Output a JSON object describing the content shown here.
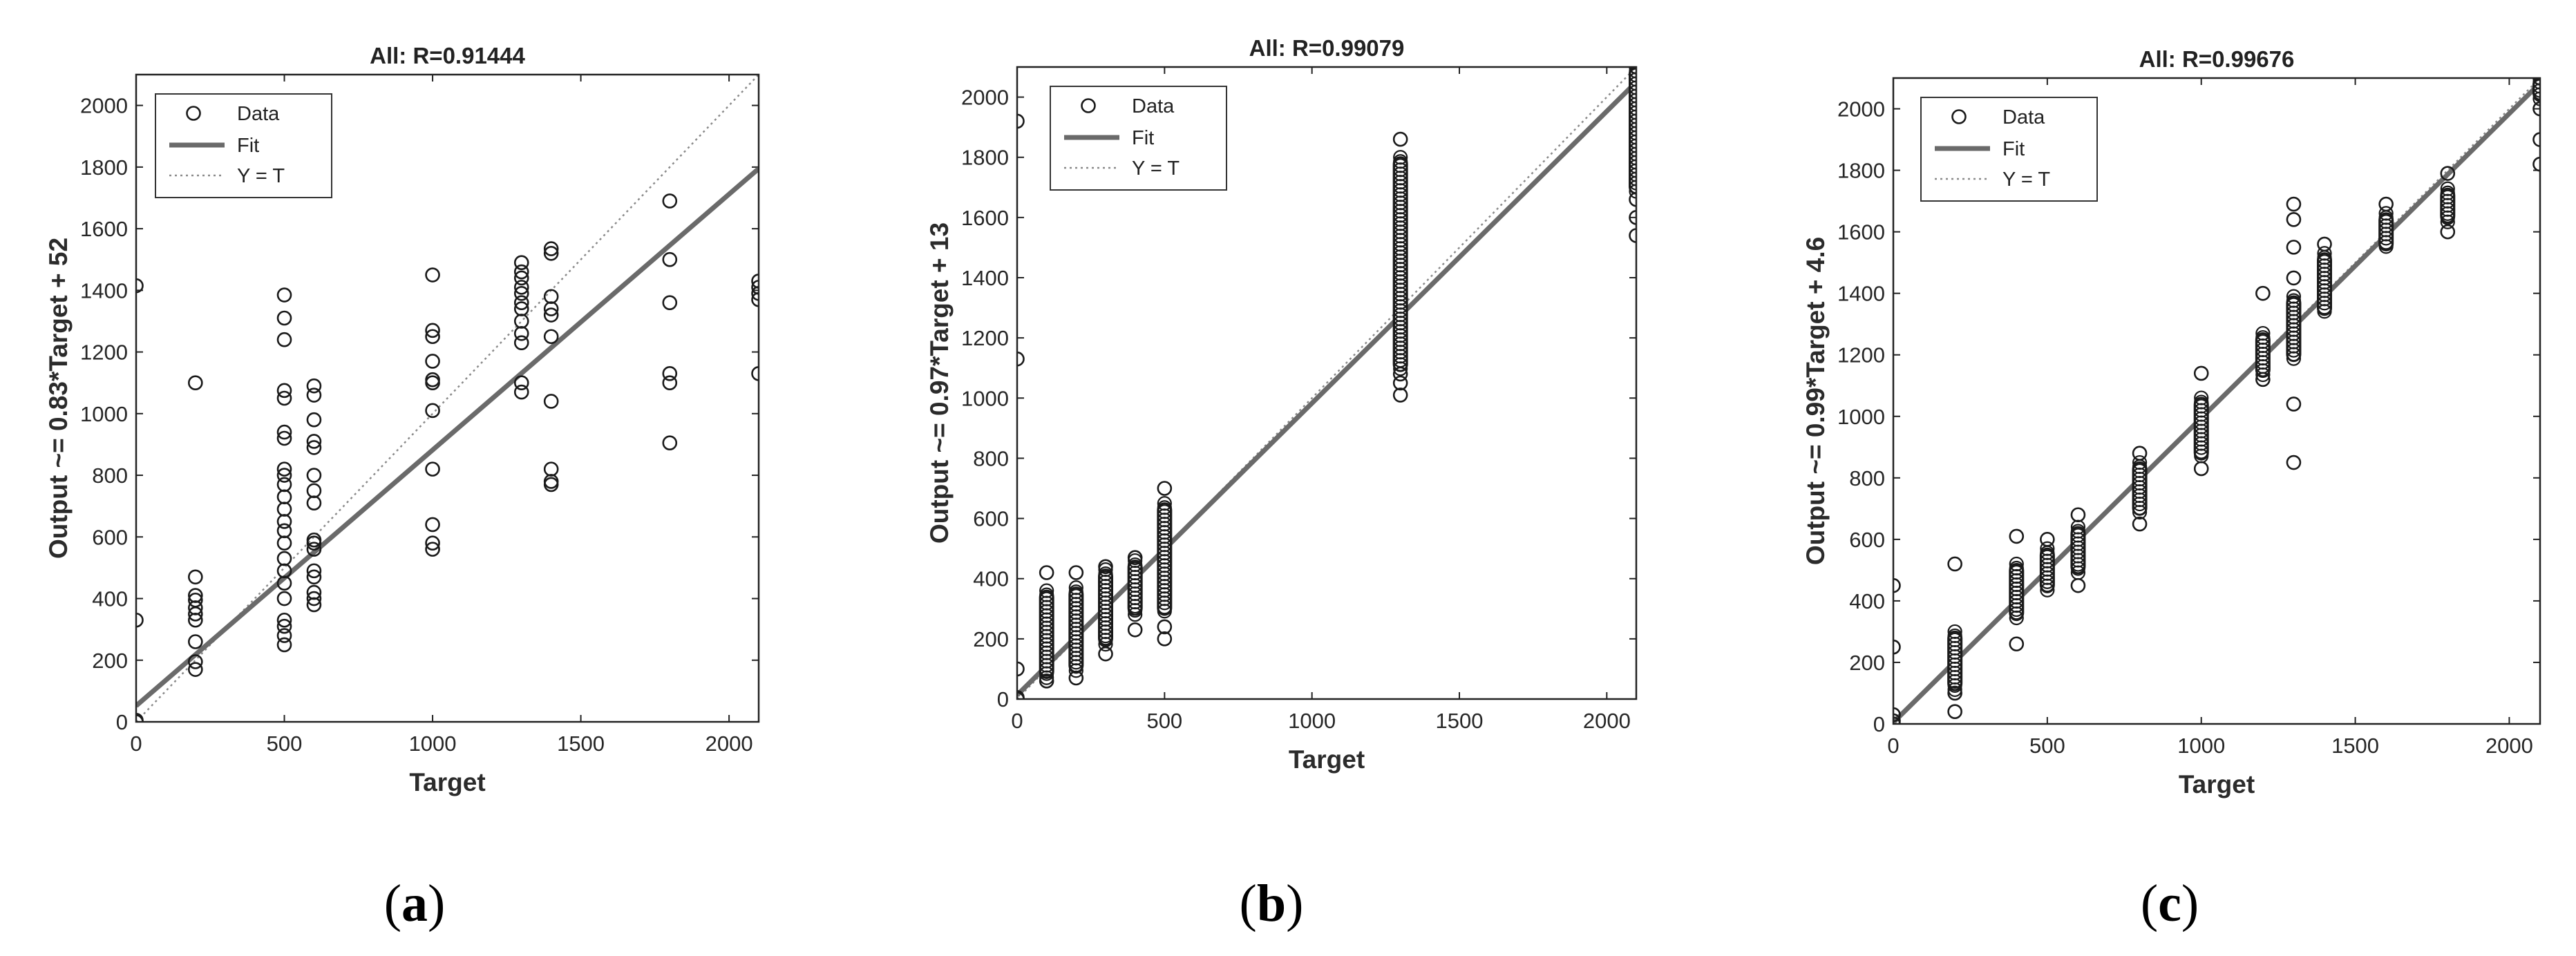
{
  "captions": [
    {
      "open": "(",
      "letter": "a",
      "close": ")"
    },
    {
      "open": "(",
      "letter": "b",
      "close": ")"
    },
    {
      "open": "(",
      "letter": "c",
      "close": ")"
    }
  ],
  "chart_data": [
    {
      "type": "scatter",
      "title": "All: R=0.91444",
      "xlabel": "Target",
      "ylabel": "Output ~= 0.83*Target + 52",
      "xlim": [
        0,
        2100
      ],
      "ylim": [
        0,
        2100
      ],
      "xticks": [
        "0",
        "500",
        "1000",
        "1500",
        "2000"
      ],
      "yticks": [
        "0",
        "200",
        "400",
        "600",
        "800",
        "1000",
        "1200",
        "1400",
        "1600",
        "1800",
        "2000"
      ],
      "legend": {
        "position": "top-left",
        "entries": [
          "Data",
          "Fit",
          "Y = T"
        ]
      },
      "fit": {
        "slope": 0.83,
        "intercept": 52
      },
      "colors": {
        "data": "#1a1a1a",
        "fit": "#6a6a6a",
        "identity": "#8a8a8a"
      },
      "series": [
        {
          "name": "Data",
          "points": [
            [
              0,
              0
            ],
            [
              0,
              5
            ],
            [
              0,
              330
            ],
            [
              0,
              1415
            ],
            [
              200,
              170
            ],
            [
              200,
              195
            ],
            [
              200,
              260
            ],
            [
              200,
              330
            ],
            [
              200,
              350
            ],
            [
              200,
              370
            ],
            [
              200,
              395
            ],
            [
              200,
              410
            ],
            [
              200,
              470
            ],
            [
              200,
              1100
            ],
            [
              500,
              250
            ],
            [
              500,
              280
            ],
            [
              500,
              310
            ],
            [
              500,
              330
            ],
            [
              500,
              400
            ],
            [
              500,
              450
            ],
            [
              500,
              490
            ],
            [
              500,
              530
            ],
            [
              500,
              580
            ],
            [
              500,
              620
            ],
            [
              500,
              650
            ],
            [
              500,
              690
            ],
            [
              500,
              730
            ],
            [
              500,
              770
            ],
            [
              500,
              800
            ],
            [
              500,
              820
            ],
            [
              500,
              920
            ],
            [
              500,
              940
            ],
            [
              500,
              1050
            ],
            [
              500,
              1075
            ],
            [
              500,
              1240
            ],
            [
              500,
              1310
            ],
            [
              500,
              1385
            ],
            [
              600,
              380
            ],
            [
              600,
              400
            ],
            [
              600,
              420
            ],
            [
              600,
              470
            ],
            [
              600,
              490
            ],
            [
              600,
              560
            ],
            [
              600,
              580
            ],
            [
              600,
              590
            ],
            [
              600,
              710
            ],
            [
              600,
              750
            ],
            [
              600,
              800
            ],
            [
              600,
              890
            ],
            [
              600,
              910
            ],
            [
              600,
              980
            ],
            [
              600,
              1060
            ],
            [
              600,
              1090
            ],
            [
              1000,
              560
            ],
            [
              1000,
              580
            ],
            [
              1000,
              640
            ],
            [
              1000,
              820
            ],
            [
              1000,
              1010
            ],
            [
              1000,
              1100
            ],
            [
              1000,
              1110
            ],
            [
              1000,
              1170
            ],
            [
              1000,
              1250
            ],
            [
              1000,
              1270
            ],
            [
              1000,
              1450
            ],
            [
              1300,
              1070
            ],
            [
              1300,
              1100
            ],
            [
              1300,
              1230
            ],
            [
              1300,
              1260
            ],
            [
              1300,
              1300
            ],
            [
              1300,
              1340
            ],
            [
              1300,
              1360
            ],
            [
              1300,
              1390
            ],
            [
              1300,
              1410
            ],
            [
              1300,
              1440
            ],
            [
              1300,
              1460
            ],
            [
              1300,
              1490
            ],
            [
              1400,
              770
            ],
            [
              1400,
              780
            ],
            [
              1400,
              820
            ],
            [
              1400,
              1040
            ],
            [
              1400,
              1250
            ],
            [
              1400,
              1320
            ],
            [
              1400,
              1340
            ],
            [
              1400,
              1380
            ],
            [
              1400,
              1520
            ],
            [
              1400,
              1535
            ],
            [
              1800,
              905
            ],
            [
              1800,
              1100
            ],
            [
              1800,
              1130
            ],
            [
              1800,
              1360
            ],
            [
              1800,
              1500
            ],
            [
              1800,
              1690
            ],
            [
              2100,
              1130
            ],
            [
              2100,
              1370
            ],
            [
              2100,
              1390
            ],
            [
              2100,
              1410
            ],
            [
              2100,
              1430
            ]
          ]
        }
      ]
    },
    {
      "type": "scatter",
      "title": "All: R=0.99079",
      "xlabel": "Target",
      "ylabel": "Output ~= 0.97*Target + 13",
      "xlim": [
        0,
        2100
      ],
      "ylim": [
        0,
        2100
      ],
      "xticks": [
        "0",
        "500",
        "1000",
        "1500",
        "2000"
      ],
      "yticks": [
        "0",
        "200",
        "400",
        "600",
        "800",
        "1000",
        "1200",
        "1400",
        "1600",
        "1800",
        "2000"
      ],
      "legend": {
        "position": "top-right",
        "entries": [
          "Data",
          "Fit",
          "Y = T"
        ]
      },
      "fit": {
        "slope": 0.97,
        "intercept": 13
      },
      "colors": {
        "data": "#1a1a1a",
        "fit": "#6a6a6a",
        "identity": "#8a8a8a"
      },
      "series": [
        {
          "name": "Data",
          "points": [
            [
              0,
              0
            ],
            [
              0,
              5
            ],
            [
              0,
              100
            ],
            [
              0,
              1130
            ],
            [
              0,
              1920
            ],
            [
              100,
              60
            ],
            [
              100,
              420
            ],
            [
              200,
              70
            ],
            [
              200,
              420
            ],
            [
              300,
              150
            ],
            [
              300,
              440
            ],
            [
              400,
              230
            ],
            [
              400,
              470
            ],
            [
              500,
              200
            ],
            [
              500,
              240
            ],
            [
              500,
              700
            ],
            [
              1300,
              1010
            ],
            [
              1300,
              1050
            ],
            [
              1300,
              1080
            ],
            [
              1300,
              1860
            ],
            [
              2100,
              1540
            ],
            [
              2100,
              1600
            ],
            [
              2100,
              1660
            ],
            [
              2100,
              2100
            ]
          ]
        }
      ],
      "columns": [
        {
          "x": 100,
          "y_range": [
            70,
            360
          ]
        },
        {
          "x": 200,
          "y_range": [
            90,
            370
          ]
        },
        {
          "x": 300,
          "y_range": [
            180,
            430
          ]
        },
        {
          "x": 400,
          "y_range": [
            280,
            460
          ]
        },
        {
          "x": 500,
          "y_range": [
            280,
            650
          ]
        },
        {
          "x": 1300,
          "y_range": [
            1090,
            1800
          ]
        },
        {
          "x": 2100,
          "y_range": [
            1680,
            2100
          ]
        }
      ]
    },
    {
      "type": "scatter",
      "title": "All: R=0.99676",
      "xlabel": "Target",
      "ylabel": "Output ~= 0.99*Target + 4.6",
      "xlim": [
        0,
        2100
      ],
      "ylim": [
        0,
        2100
      ],
      "xticks": [
        "0",
        "500",
        "1000",
        "1500",
        "2000"
      ],
      "yticks": [
        "0",
        "200",
        "400",
        "600",
        "800",
        "1000",
        "1200",
        "1400",
        "1600",
        "1800",
        "2000"
      ],
      "legend": {
        "position": "top-left",
        "entries": [
          "Data",
          "Fit",
          "Y = T"
        ]
      },
      "fit": {
        "slope": 0.99,
        "intercept": 4.6
      },
      "colors": {
        "data": "#1a1a1a",
        "fit": "#6a6a6a",
        "identity": "#8a8a8a"
      },
      "series": [
        {
          "name": "Data",
          "points": [
            [
              0,
              0
            ],
            [
              0,
              10
            ],
            [
              0,
              30
            ],
            [
              0,
              250
            ],
            [
              0,
              450
            ],
            [
              200,
              40
            ],
            [
              200,
              100
            ],
            [
              200,
              520
            ],
            [
              400,
              260
            ],
            [
              400,
              610
            ],
            [
              500,
              600
            ],
            [
              600,
              450
            ],
            [
              600,
              680
            ],
            [
              800,
              650
            ],
            [
              800,
              880
            ],
            [
              1000,
              830
            ],
            [
              1000,
              1140
            ],
            [
              1200,
              1120
            ],
            [
              1200,
              1400
            ],
            [
              1300,
              850
            ],
            [
              1300,
              1040
            ],
            [
              1300,
              1450
            ],
            [
              1300,
              1550
            ],
            [
              1300,
              1640
            ],
            [
              1300,
              1690
            ],
            [
              1400,
              1560
            ],
            [
              1600,
              1690
            ],
            [
              1800,
              1600
            ],
            [
              1800,
              1790
            ],
            [
              2100,
              1820
            ],
            [
              2100,
              1900
            ],
            [
              2100,
              2000
            ],
            [
              2100,
              2100
            ]
          ]
        }
      ],
      "columns": [
        {
          "x": 200,
          "y_range": [
            110,
            300
          ]
        },
        {
          "x": 400,
          "y_range": [
            340,
            520
          ]
        },
        {
          "x": 500,
          "y_range": [
            430,
            570
          ]
        },
        {
          "x": 600,
          "y_range": [
            490,
            640
          ]
        },
        {
          "x": 800,
          "y_range": [
            680,
            850
          ]
        },
        {
          "x": 1000,
          "y_range": [
            860,
            1060
          ]
        },
        {
          "x": 1200,
          "y_range": [
            1130,
            1270
          ]
        },
        {
          "x": 1300,
          "y_range": [
            1180,
            1390
          ]
        },
        {
          "x": 1400,
          "y_range": [
            1330,
            1530
          ]
        },
        {
          "x": 1600,
          "y_range": [
            1540,
            1660
          ]
        },
        {
          "x": 1800,
          "y_range": [
            1630,
            1740
          ]
        },
        {
          "x": 2100,
          "y_range": [
            2030,
            2100
          ]
        }
      ]
    }
  ]
}
